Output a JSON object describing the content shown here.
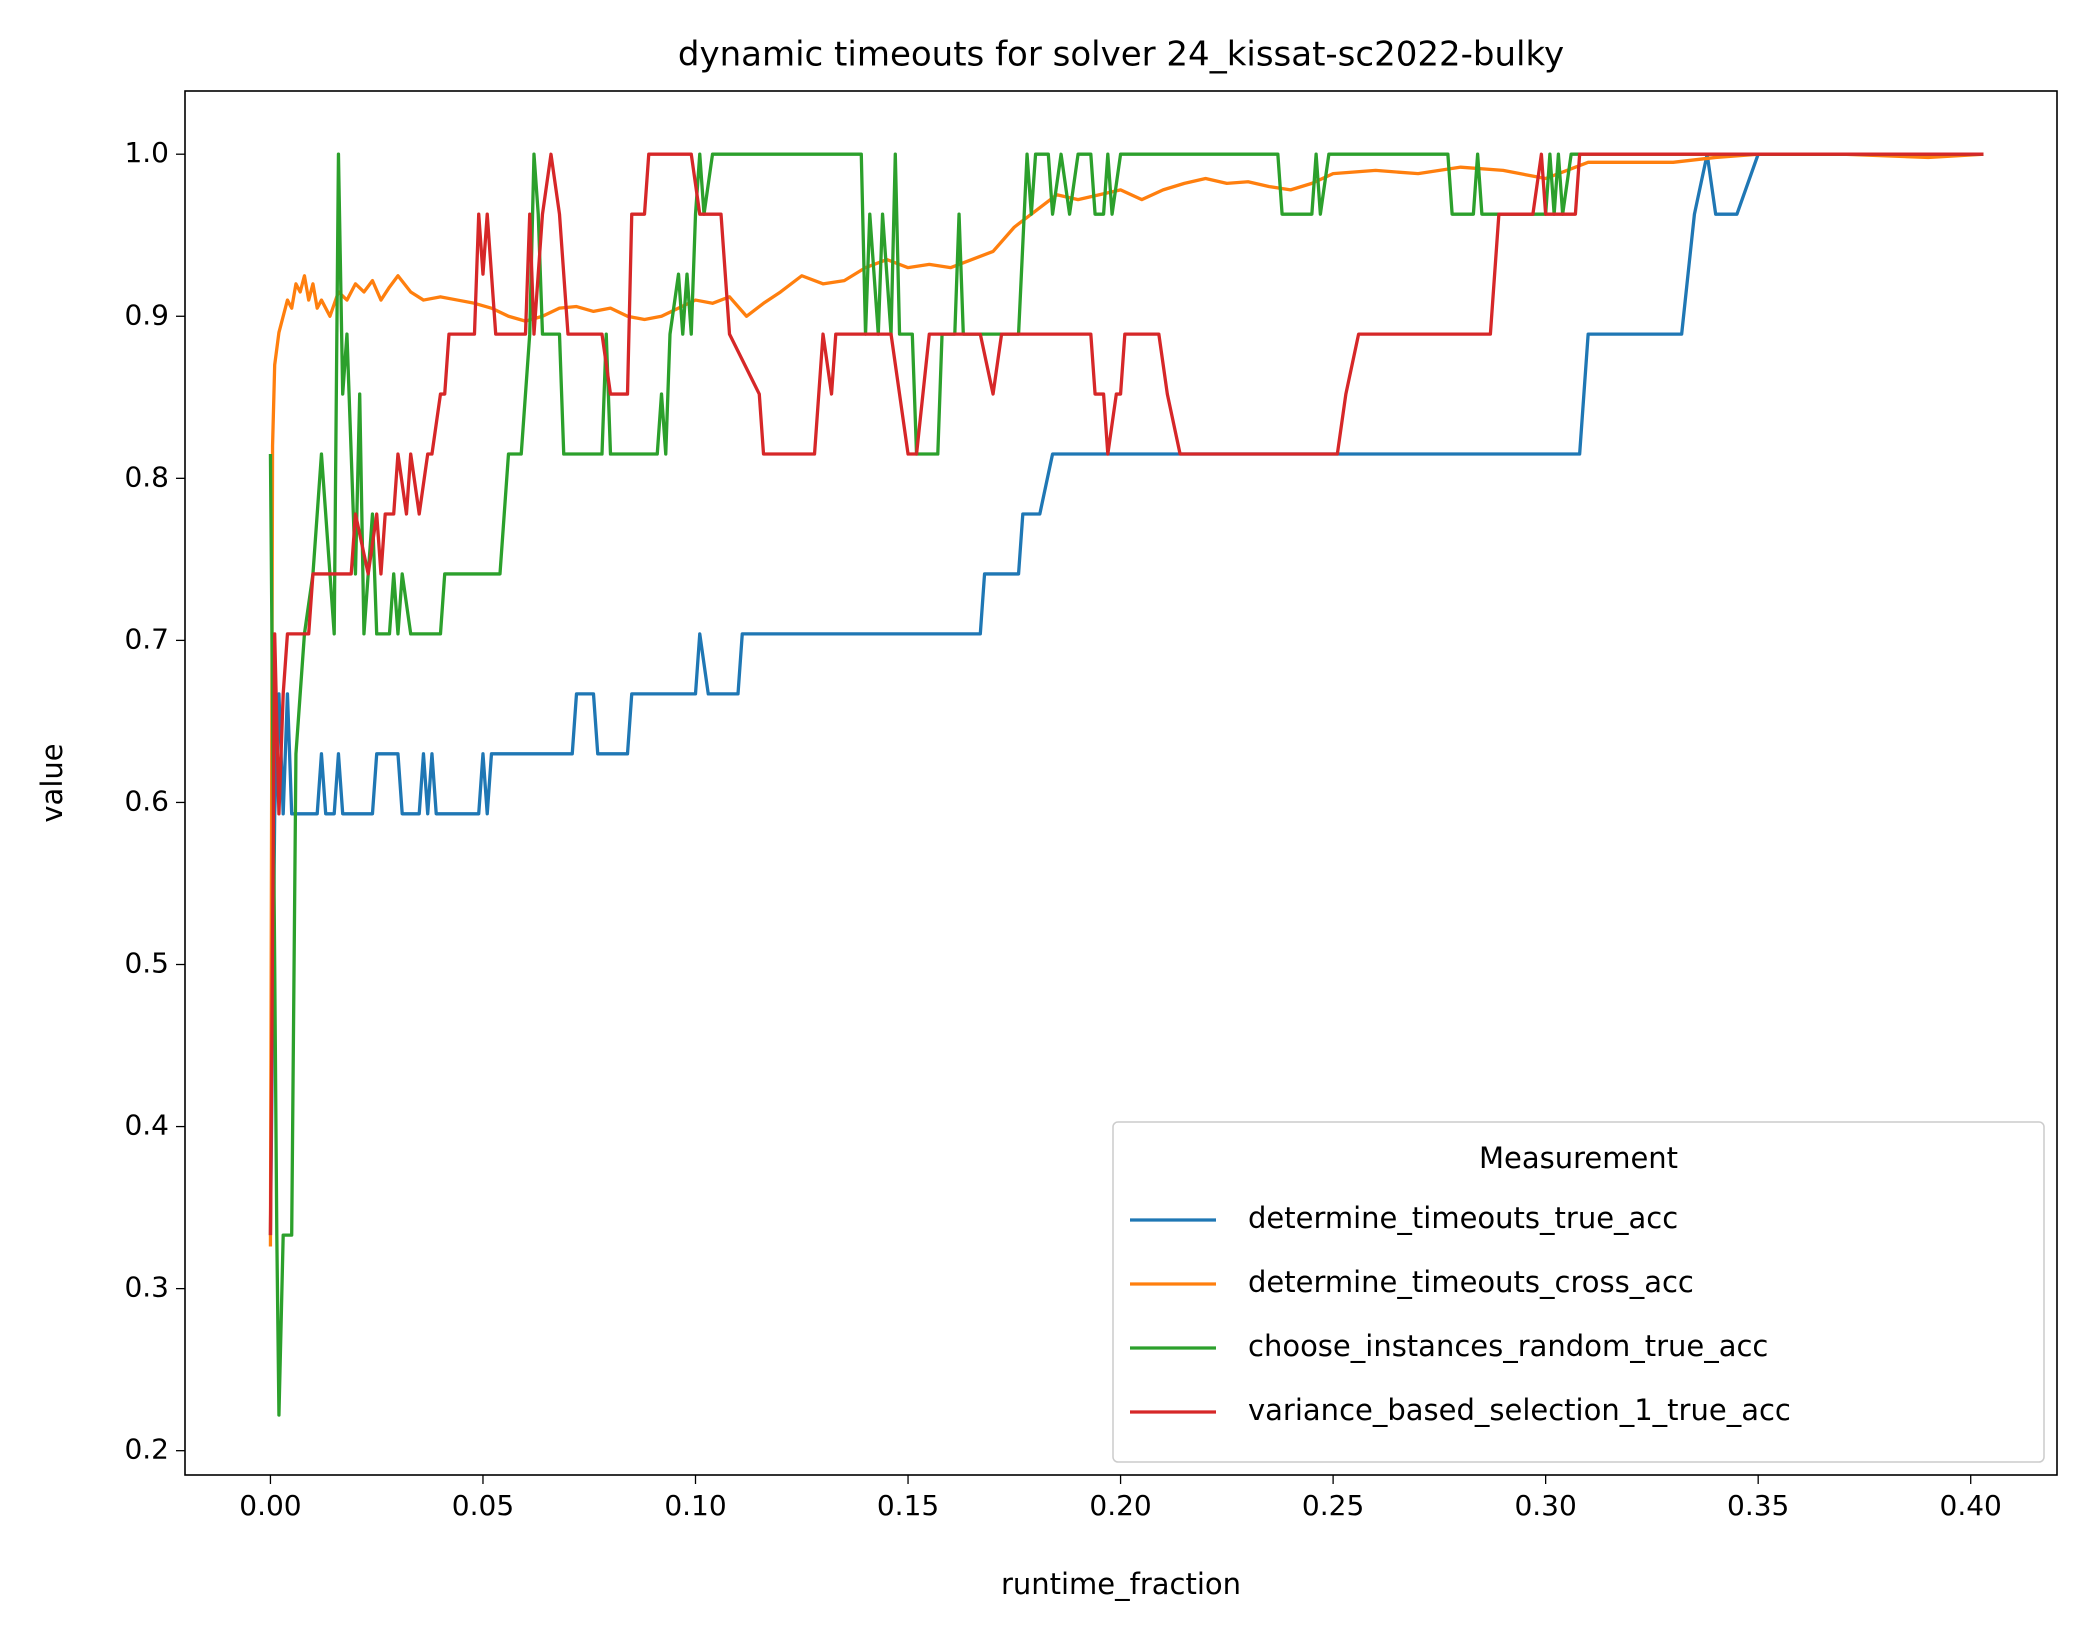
{
  "chart_data": {
    "type": "line",
    "title": "dynamic timeouts for solver 24_kissat-sc2022-bulky",
    "x_label": "runtime_fraction",
    "y_label": "value",
    "legend_title": "Measurement",
    "legend_position": "lower right",
    "grid": false,
    "xlim": [
      -0.0201,
      0.4203
    ],
    "ylim": [
      0.185,
      1.039
    ],
    "xticks": [
      {
        "value": 0,
        "label": "0.00"
      },
      {
        "value": 0.05,
        "label": "0.05"
      },
      {
        "value": 0.1,
        "label": "0.10"
      },
      {
        "value": 0.15,
        "label": "0.15"
      },
      {
        "value": 0.2,
        "label": "0.20"
      },
      {
        "value": 0.25,
        "label": "0.25"
      },
      {
        "value": 0.3,
        "label": "0.30"
      },
      {
        "value": 0.35,
        "label": "0.35"
      },
      {
        "value": 0.4,
        "label": "0.40"
      }
    ],
    "yticks": [
      0.2,
      0.3,
      0.4,
      0.5,
      0.6,
      0.7,
      0.8,
      0.9,
      {
        "value": 1,
        "label": "1.0"
      }
    ],
    "series": [
      {
        "name": "determine_timeouts_true_acc",
        "color": "#1f77b4",
        "x": [
          0,
          0.001,
          0.002,
          0.003,
          0.004,
          0.005,
          0.011,
          0.012,
          0.013,
          0.015,
          0.016,
          0.017,
          0.024,
          0.025,
          0.03,
          0.031,
          0.035,
          0.036,
          0.037,
          0.038,
          0.039,
          0.049,
          0.05,
          0.051,
          0.052,
          0.071,
          0.072,
          0.076,
          0.077,
          0.084,
          0.085,
          0.1,
          0.101,
          0.103,
          0.11,
          0.111,
          0.167,
          0.168,
          0.176,
          0.177,
          0.181,
          0.184,
          0.308,
          0.31,
          0.332,
          0.335,
          0.338,
          0.34,
          0.345,
          0.35,
          0.403
        ],
        "values": [
          0.333,
          0.593,
          0.667,
          0.593,
          0.667,
          0.593,
          0.593,
          0.63,
          0.593,
          0.593,
          0.63,
          0.593,
          0.593,
          0.63,
          0.63,
          0.593,
          0.593,
          0.63,
          0.593,
          0.63,
          0.593,
          0.593,
          0.63,
          0.593,
          0.63,
          0.63,
          0.667,
          0.667,
          0.63,
          0.63,
          0.667,
          0.667,
          0.704,
          0.667,
          0.667,
          0.704,
          0.704,
          0.741,
          0.741,
          0.778,
          0.778,
          0.815,
          0.815,
          0.889,
          0.889,
          0.963,
          1.0,
          0.963,
          0.963,
          1.0,
          1.0
        ]
      },
      {
        "name": "determine_timeouts_cross_acc",
        "color": "#ff7f0e",
        "x": [
          0,
          0.0005,
          0.001,
          0.002,
          0.003,
          0.004,
          0.005,
          0.006,
          0.007,
          0.008,
          0.009,
          0.01,
          0.011,
          0.012,
          0.014,
          0.016,
          0.018,
          0.02,
          0.022,
          0.024,
          0.026,
          0.028,
          0.03,
          0.033,
          0.036,
          0.04,
          0.044,
          0.048,
          0.052,
          0.056,
          0.06,
          0.064,
          0.068,
          0.072,
          0.076,
          0.08,
          0.084,
          0.088,
          0.092,
          0.096,
          0.1,
          0.104,
          0.108,
          0.112,
          0.116,
          0.12,
          0.125,
          0.13,
          0.135,
          0.14,
          0.145,
          0.15,
          0.155,
          0.16,
          0.165,
          0.17,
          0.175,
          0.18,
          0.185,
          0.19,
          0.195,
          0.2,
          0.205,
          0.21,
          0.215,
          0.22,
          0.225,
          0.23,
          0.235,
          0.24,
          0.245,
          0.25,
          0.26,
          0.27,
          0.28,
          0.29,
          0.3,
          0.305,
          0.31,
          0.33,
          0.34,
          0.35,
          0.37,
          0.39,
          0.403
        ],
        "values": [
          0.326,
          0.82,
          0.87,
          0.89,
          0.9,
          0.91,
          0.905,
          0.92,
          0.915,
          0.925,
          0.91,
          0.92,
          0.905,
          0.91,
          0.9,
          0.915,
          0.91,
          0.92,
          0.915,
          0.922,
          0.91,
          0.918,
          0.925,
          0.915,
          0.91,
          0.912,
          0.91,
          0.908,
          0.905,
          0.9,
          0.897,
          0.9,
          0.905,
          0.906,
          0.903,
          0.905,
          0.9,
          0.898,
          0.9,
          0.905,
          0.91,
          0.908,
          0.912,
          0.9,
          0.908,
          0.915,
          0.925,
          0.92,
          0.922,
          0.93,
          0.935,
          0.93,
          0.932,
          0.93,
          0.935,
          0.94,
          0.955,
          0.965,
          0.975,
          0.972,
          0.975,
          0.978,
          0.972,
          0.978,
          0.982,
          0.985,
          0.982,
          0.983,
          0.98,
          0.978,
          0.982,
          0.988,
          0.99,
          0.988,
          0.992,
          0.99,
          0.985,
          0.99,
          0.995,
          0.995,
          0.998,
          1.0,
          1.0,
          0.998,
          1.0
        ]
      },
      {
        "name": "choose_instances_random_true_acc",
        "color": "#2ca02c",
        "x": [
          0,
          0.001,
          0.0015,
          0.002,
          0.003,
          0.005,
          0.006,
          0.008,
          0.01,
          0.012,
          0.014,
          0.015,
          0.016,
          0.017,
          0.018,
          0.02,
          0.021,
          0.022,
          0.024,
          0.025,
          0.028,
          0.029,
          0.03,
          0.031,
          0.033,
          0.04,
          0.041,
          0.054,
          0.055,
          0.056,
          0.059,
          0.061,
          0.062,
          0.063,
          0.064,
          0.068,
          0.069,
          0.078,
          0.079,
          0.08,
          0.091,
          0.092,
          0.093,
          0.094,
          0.096,
          0.097,
          0.098,
          0.099,
          0.1,
          0.101,
          0.102,
          0.104,
          0.139,
          0.14,
          0.141,
          0.143,
          0.144,
          0.146,
          0.147,
          0.148,
          0.151,
          0.152,
          0.157,
          0.158,
          0.161,
          0.162,
          0.163,
          0.176,
          0.178,
          0.179,
          0.18,
          0.183,
          0.184,
          0.186,
          0.188,
          0.19,
          0.193,
          0.194,
          0.196,
          0.197,
          0.198,
          0.2,
          0.237,
          0.238,
          0.245,
          0.246,
          0.247,
          0.249,
          0.277,
          0.278,
          0.283,
          0.284,
          0.285,
          0.3,
          0.301,
          0.302,
          0.303,
          0.304,
          0.306,
          0.403
        ],
        "values": [
          0.815,
          0.5,
          0.333,
          0.222,
          0.333,
          0.333,
          0.63,
          0.704,
          0.741,
          0.815,
          0.741,
          0.704,
          1.0,
          0.852,
          0.889,
          0.741,
          0.852,
          0.704,
          0.778,
          0.704,
          0.704,
          0.741,
          0.704,
          0.741,
          0.704,
          0.704,
          0.741,
          0.741,
          0.778,
          0.815,
          0.815,
          0.889,
          1.0,
          0.963,
          0.889,
          0.889,
          0.815,
          0.815,
          0.889,
          0.815,
          0.815,
          0.852,
          0.815,
          0.889,
          0.926,
          0.889,
          0.926,
          0.889,
          0.963,
          1.0,
          0.963,
          1.0,
          1.0,
          0.889,
          0.963,
          0.889,
          0.963,
          0.889,
          1.0,
          0.889,
          0.889,
          0.815,
          0.815,
          0.889,
          0.889,
          0.963,
          0.889,
          0.889,
          1.0,
          0.963,
          1.0,
          1.0,
          0.963,
          1.0,
          0.963,
          1.0,
          1.0,
          0.963,
          0.963,
          1.0,
          0.963,
          1.0,
          1.0,
          0.963,
          0.963,
          1.0,
          0.963,
          1.0,
          1.0,
          0.963,
          0.963,
          1.0,
          0.963,
          0.963,
          1.0,
          0.963,
          1.0,
          0.963,
          1.0,
          1.0
        ]
      },
      {
        "name": "variance_based_selection_1_true_acc",
        "color": "#d62728",
        "x": [
          0,
          0.001,
          0.002,
          0.003,
          0.004,
          0.009,
          0.01,
          0.019,
          0.02,
          0.023,
          0.025,
          0.026,
          0.027,
          0.029,
          0.03,
          0.032,
          0.033,
          0.035,
          0.037,
          0.038,
          0.04,
          0.041,
          0.042,
          0.048,
          0.049,
          0.05,
          0.051,
          0.053,
          0.06,
          0.061,
          0.062,
          0.064,
          0.066,
          0.068,
          0.07,
          0.078,
          0.08,
          0.084,
          0.085,
          0.088,
          0.089,
          0.099,
          0.101,
          0.106,
          0.108,
          0.115,
          0.116,
          0.128,
          0.13,
          0.132,
          0.133,
          0.146,
          0.148,
          0.15,
          0.152,
          0.155,
          0.167,
          0.17,
          0.172,
          0.193,
          0.194,
          0.196,
          0.197,
          0.199,
          0.2,
          0.201,
          0.209,
          0.211,
          0.214,
          0.251,
          0.253,
          0.256,
          0.287,
          0.289,
          0.297,
          0.299,
          0.3,
          0.307,
          0.308,
          0.403
        ],
        "values": [
          0.333,
          0.704,
          0.593,
          0.667,
          0.704,
          0.704,
          0.741,
          0.741,
          0.778,
          0.741,
          0.778,
          0.741,
          0.778,
          0.778,
          0.815,
          0.778,
          0.815,
          0.778,
          0.815,
          0.815,
          0.852,
          0.852,
          0.889,
          0.889,
          0.963,
          0.926,
          0.963,
          0.889,
          0.889,
          0.963,
          0.889,
          0.963,
          1.0,
          0.963,
          0.889,
          0.889,
          0.852,
          0.852,
          0.963,
          0.963,
          1.0,
          1.0,
          0.963,
          0.963,
          0.889,
          0.852,
          0.815,
          0.815,
          0.889,
          0.852,
          0.889,
          0.889,
          0.852,
          0.815,
          0.815,
          0.889,
          0.889,
          0.852,
          0.889,
          0.889,
          0.852,
          0.852,
          0.815,
          0.852,
          0.852,
          0.889,
          0.889,
          0.852,
          0.815,
          0.815,
          0.852,
          0.889,
          0.889,
          0.963,
          0.963,
          1.0,
          0.963,
          0.963,
          1.0,
          1.0
        ]
      }
    ]
  }
}
